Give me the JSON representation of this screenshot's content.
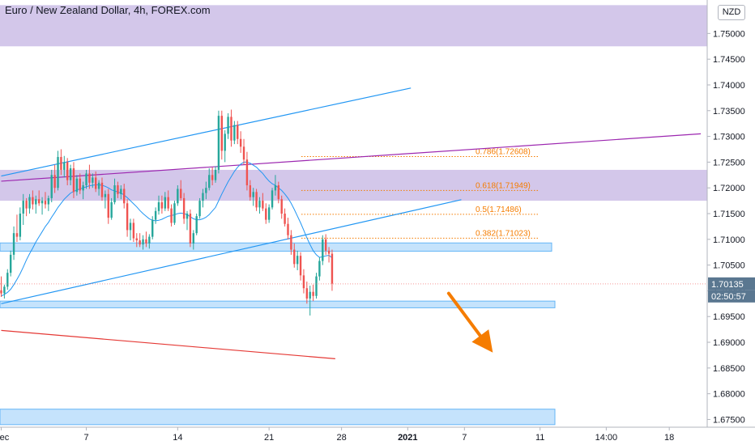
{
  "chart_data": {
    "type": "candlestick",
    "title": "Euro / New Zealand Dollar, 4h, FOREX.com",
    "currency": "NZD",
    "ylim": [
      1.6735,
      1.7565
    ],
    "y_ticks": [
      1.75,
      1.745,
      1.74,
      1.735,
      1.73,
      1.725,
      1.72,
      1.715,
      1.71,
      1.705,
      1.7,
      1.695,
      1.69,
      1.685,
      1.68,
      1.675
    ],
    "x_ticks": [
      {
        "label": "Dec",
        "i": 0
      },
      {
        "label": "7",
        "i": 27
      },
      {
        "label": "14",
        "i": 56
      },
      {
        "label": "21",
        "i": 85
      },
      {
        "label": "28",
        "i": 108
      },
      {
        "label": "2021",
        "i": 129
      },
      {
        "label": "7",
        "i": 147
      },
      {
        "label": "11",
        "i": 171
      },
      {
        "label": "14:00",
        "i": 192
      },
      {
        "label": "18",
        "i": 212
      }
    ],
    "candles": [
      [
        1.7001,
        1.7028,
        1.6988,
        1.6995
      ],
      [
        1.6995,
        1.7012,
        1.6985,
        1.7008
      ],
      [
        1.7008,
        1.7042,
        1.7002,
        1.7035
      ],
      [
        1.7035,
        1.7078,
        1.7028,
        1.707
      ],
      [
        1.707,
        1.7125,
        1.706,
        1.7112
      ],
      [
        1.7112,
        1.7148,
        1.7095,
        1.7105
      ],
      [
        1.7105,
        1.7162,
        1.7098,
        1.715
      ],
      [
        1.715,
        1.7188,
        1.7128,
        1.7175
      ],
      [
        1.7175,
        1.718,
        1.7145,
        1.716
      ],
      [
        1.716,
        1.7188,
        1.715,
        1.7182
      ],
      [
        1.7182,
        1.7195,
        1.7158,
        1.7168
      ],
      [
        1.7168,
        1.7185,
        1.715,
        1.7178
      ],
      [
        1.7178,
        1.7195,
        1.7165,
        1.717
      ],
      [
        1.717,
        1.7182,
        1.7148,
        1.7175
      ],
      [
        1.7175,
        1.7192,
        1.716,
        1.7168
      ],
      [
        1.7168,
        1.7185,
        1.7155,
        1.718
      ],
      [
        1.718,
        1.7235,
        1.7172,
        1.7225
      ],
      [
        1.7225,
        1.7245,
        1.719,
        1.72
      ],
      [
        1.72,
        1.7272,
        1.7195,
        1.726
      ],
      [
        1.726,
        1.7275,
        1.7225,
        1.7235
      ],
      [
        1.7235,
        1.7262,
        1.722,
        1.725
      ],
      [
        1.725,
        1.7258,
        1.7205,
        1.7215
      ],
      [
        1.7215,
        1.7245,
        1.7205,
        1.7238
      ],
      [
        1.7238,
        1.725,
        1.718,
        1.7192
      ],
      [
        1.7192,
        1.7225,
        1.7185,
        1.7218
      ],
      [
        1.7218,
        1.7228,
        1.7188,
        1.7195
      ],
      [
        1.7195,
        1.7212,
        1.7178,
        1.7205
      ],
      [
        1.7205,
        1.7235,
        1.7198,
        1.7228
      ],
      [
        1.7228,
        1.7245,
        1.7198,
        1.721
      ],
      [
        1.721,
        1.7228,
        1.72,
        1.722
      ],
      [
        1.722,
        1.7232,
        1.7192,
        1.7198
      ],
      [
        1.7198,
        1.7215,
        1.7185,
        1.721
      ],
      [
        1.721,
        1.722,
        1.7175,
        1.7182
      ],
      [
        1.7182,
        1.7195,
        1.716,
        1.7188
      ],
      [
        1.7188,
        1.7198,
        1.713,
        1.7142
      ],
      [
        1.7142,
        1.718,
        1.7138,
        1.7172
      ],
      [
        1.7172,
        1.7218,
        1.7168,
        1.7205
      ],
      [
        1.7205,
        1.7212,
        1.718,
        1.7188
      ],
      [
        1.7188,
        1.7205,
        1.7178,
        1.7198
      ],
      [
        1.7198,
        1.7208,
        1.716,
        1.717
      ],
      [
        1.717,
        1.7178,
        1.7105,
        1.7118
      ],
      [
        1.7118,
        1.714,
        1.7098,
        1.7132
      ],
      [
        1.7132,
        1.714,
        1.7095,
        1.7102
      ],
      [
        1.7102,
        1.7112,
        1.7085,
        1.7098
      ],
      [
        1.7098,
        1.7112,
        1.7085,
        1.709
      ],
      [
        1.709,
        1.7108,
        1.708,
        1.71
      ],
      [
        1.71,
        1.7115,
        1.7085,
        1.7092
      ],
      [
        1.7092,
        1.711,
        1.7082,
        1.7105
      ],
      [
        1.7105,
        1.7145,
        1.71,
        1.7138
      ],
      [
        1.7138,
        1.7162,
        1.713,
        1.7155
      ],
      [
        1.7155,
        1.7185,
        1.7148,
        1.7172
      ],
      [
        1.7172,
        1.7185,
        1.715,
        1.716
      ],
      [
        1.716,
        1.7192,
        1.7155,
        1.7182
      ],
      [
        1.7182,
        1.7195,
        1.7155,
        1.716
      ],
      [
        1.716,
        1.7168,
        1.7125,
        1.7132
      ],
      [
        1.7132,
        1.7175,
        1.7128,
        1.717
      ],
      [
        1.717,
        1.7205,
        1.7165,
        1.7198
      ],
      [
        1.7198,
        1.7215,
        1.7175,
        1.718
      ],
      [
        1.718,
        1.719,
        1.713,
        1.714
      ],
      [
        1.714,
        1.7155,
        1.7118,
        1.715
      ],
      [
        1.715,
        1.7158,
        1.7085,
        1.7092
      ],
      [
        1.7092,
        1.7118,
        1.708,
        1.7112
      ],
      [
        1.7112,
        1.715,
        1.7108,
        1.7145
      ],
      [
        1.7145,
        1.718,
        1.714,
        1.7175
      ],
      [
        1.7175,
        1.7198,
        1.7162,
        1.719
      ],
      [
        1.719,
        1.7212,
        1.7178,
        1.72
      ],
      [
        1.72,
        1.7238,
        1.7195,
        1.7225
      ],
      [
        1.7225,
        1.724,
        1.7205,
        1.7215
      ],
      [
        1.7215,
        1.7242,
        1.721,
        1.7235
      ],
      [
        1.7235,
        1.735,
        1.7228,
        1.734
      ],
      [
        1.734,
        1.735,
        1.7255,
        1.7272
      ],
      [
        1.7272,
        1.7312,
        1.725,
        1.7305
      ],
      [
        1.7305,
        1.7345,
        1.7295,
        1.7338
      ],
      [
        1.7338,
        1.7352,
        1.728,
        1.7292
      ],
      [
        1.7292,
        1.733,
        1.7285,
        1.7322
      ],
      [
        1.7322,
        1.733,
        1.7285,
        1.7295
      ],
      [
        1.7295,
        1.731,
        1.7268,
        1.728
      ],
      [
        1.728,
        1.7295,
        1.7245,
        1.7255
      ],
      [
        1.7255,
        1.727,
        1.7195,
        1.7205
      ],
      [
        1.7205,
        1.7215,
        1.7175,
        1.7182
      ],
      [
        1.7182,
        1.72,
        1.7165,
        1.7192
      ],
      [
        1.7192,
        1.7198,
        1.7155,
        1.7162
      ],
      [
        1.7162,
        1.7182,
        1.715,
        1.7175
      ],
      [
        1.7175,
        1.719,
        1.7155,
        1.716
      ],
      [
        1.716,
        1.717,
        1.713,
        1.7138
      ],
      [
        1.7138,
        1.7168,
        1.7132,
        1.7162
      ],
      [
        1.7162,
        1.72,
        1.7158,
        1.7195
      ],
      [
        1.7195,
        1.7225,
        1.7185,
        1.7205
      ],
      [
        1.7205,
        1.7212,
        1.717,
        1.7178
      ],
      [
        1.7178,
        1.7185,
        1.714,
        1.715
      ],
      [
        1.715,
        1.716,
        1.7125,
        1.713
      ],
      [
        1.713,
        1.7142,
        1.71,
        1.7108
      ],
      [
        1.7108,
        1.7118,
        1.707,
        1.708
      ],
      [
        1.708,
        1.7092,
        1.7045,
        1.7052
      ],
      [
        1.7052,
        1.7078,
        1.704,
        1.7068
      ],
      [
        1.7068,
        1.7075,
        1.702,
        1.703
      ],
      [
        1.703,
        1.7042,
        1.6995,
        1.7005
      ],
      [
        1.7005,
        1.7018,
        1.6975,
        1.6985
      ],
      [
        1.6985,
        1.701,
        1.6952,
        1.6998
      ],
      [
        1.6998,
        1.7012,
        1.698,
        1.699
      ],
      [
        1.699,
        1.7035,
        1.6985,
        1.7028
      ],
      [
        1.7028,
        1.7065,
        1.702,
        1.7058
      ],
      [
        1.7058,
        1.7108,
        1.705,
        1.71
      ],
      [
        1.71,
        1.711,
        1.707,
        1.7078
      ],
      [
        1.7078,
        1.7085,
        1.7055,
        1.7072
      ],
      [
        1.7072,
        1.708,
        1.7,
        1.7014
      ]
    ],
    "moving_average": [
      1.699,
      1.6993,
      1.6997,
      1.7003,
      1.7012,
      1.7022,
      1.7033,
      1.7046,
      1.706,
      1.7072,
      1.7083,
      1.7095,
      1.7105,
      1.7115,
      1.7125,
      1.7133,
      1.7143,
      1.7152,
      1.7162,
      1.717,
      1.7178,
      1.7184,
      1.719,
      1.7193,
      1.7196,
      1.7198,
      1.72,
      1.7202,
      1.7204,
      1.7205,
      1.7206,
      1.7206,
      1.7205,
      1.7203,
      1.72,
      1.7196,
      1.7194,
      1.7192,
      1.719,
      1.7186,
      1.7181,
      1.7175,
      1.7169,
      1.7163,
      1.7156,
      1.715,
      1.7145,
      1.714,
      1.7137,
      1.7136,
      1.7137,
      1.7139,
      1.7142,
      1.7145,
      1.7146,
      1.7148,
      1.715,
      1.7151,
      1.715,
      1.7148,
      1.7144,
      1.714,
      1.7138,
      1.7138,
      1.714,
      1.7143,
      1.7148,
      1.7155,
      1.7162,
      1.7175,
      1.7188,
      1.72,
      1.7212,
      1.7222,
      1.7232,
      1.724,
      1.7246,
      1.725,
      1.725,
      1.7248,
      1.7244,
      1.724,
      1.7234,
      1.7228,
      1.722,
      1.7213,
      1.7208,
      1.7205,
      1.72,
      1.7195,
      1.7188,
      1.718,
      1.717,
      1.7158,
      1.7145,
      1.7132,
      1.7118,
      1.7103,
      1.709,
      1.7078,
      1.707,
      1.7065,
      1.7066,
      1.7068,
      1.7069,
      1.7064
    ],
    "supply_demand_zones": [
      {
        "from": 1.7475,
        "to": 1.7555
      },
      {
        "from": 1.7175,
        "to": 1.7235
      },
      {
        "from": 1.7077,
        "to": 1.7093
      },
      {
        "from": 1.6967,
        "to": 1.698
      },
      {
        "from": 1.674,
        "to": 1.677
      }
    ],
    "fibonacci": [
      {
        "label": "0.786(1.72608)",
        "value": 1.72608
      },
      {
        "label": "0.618(1.71949)",
        "value": 1.71949
      },
      {
        "label": "0.5(1.71486)",
        "value": 1.71486
      },
      {
        "label": "0.382(1.71023)",
        "value": 1.71023
      }
    ],
    "trendlines": [
      {
        "name": "channel-top",
        "color": "#2196f3",
        "from": {
          "i": 0,
          "y": 1.7223
        },
        "to": {
          "i": 130,
          "y": 1.7394
        }
      },
      {
        "name": "channel-bottom",
        "color": "#2196f3",
        "from": {
          "i": 0,
          "y": 1.6975
        },
        "to": {
          "i": 146,
          "y": 1.7177
        }
      },
      {
        "name": "long-term-resistance",
        "color": "#9c27b0",
        "from": {
          "i": 0,
          "y": 1.7213
        },
        "to": {
          "i": 222,
          "y": 1.7305
        }
      },
      {
        "name": "long-term-support",
        "color": "#e53935",
        "from": {
          "i": 0,
          "y": 1.6923
        },
        "to": {
          "i": 106,
          "y": 1.6868
        }
      }
    ],
    "last_price": "1.70135",
    "countdown": "02:50:57",
    "projection_arrow": {
      "color": "#f57c00",
      "from": {
        "i": 142,
        "y": 1.6995
      },
      "to": {
        "i": 156,
        "y": 1.688
      }
    }
  }
}
